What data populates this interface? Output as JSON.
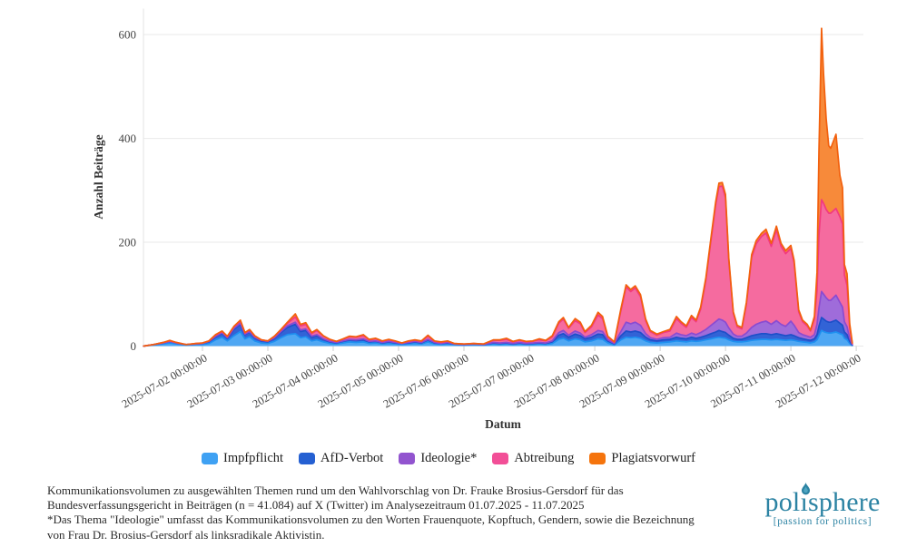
{
  "chart": {
    "y_axis_title": "Anzahl Beiträge",
    "x_axis_title": "Datum",
    "y_ticks": [
      0,
      200,
      400,
      600
    ],
    "x_ticks_t": [
      1,
      2,
      3,
      4,
      5,
      6,
      7,
      8,
      9,
      10,
      11
    ],
    "x_tick_labels": [
      "2025-07-02 00:00:00",
      "2025-07-03 00:00:00",
      "2025-07-04 00:00:00",
      "2025-07-05 00:00:00",
      "2025-07-06 00:00:00",
      "2025-07-07 00:00:00",
      "2025-07-08 00:00:00",
      "2025-07-09 00:00:00",
      "2025-07-10 00:00:00",
      "2025-07-11 00:00:00",
      "2025-07-12 00:00:00"
    ],
    "grid_color": "#e9e9e9",
    "axis_color": "#e3e3e3"
  },
  "chart_data": {
    "type": "area",
    "stacked": true,
    "xlabel": "Datum",
    "ylabel": "Anzahl Beiträge",
    "ylim": [
      0,
      650
    ],
    "grid": "horizontal",
    "legend_position": "bottom-center",
    "x_unit": "days since 2025-07-01 00:00:00",
    "x_range_labels": [
      "2025-07-01",
      "2025-07-12 00:00:00"
    ],
    "x_days": [
      0.1,
      0.25,
      0.4,
      0.5,
      0.6,
      0.75,
      0.9,
      1.0,
      1.1,
      1.2,
      1.3,
      1.38,
      1.48,
      1.58,
      1.65,
      1.72,
      1.8,
      1.9,
      2.0,
      2.1,
      2.2,
      2.3,
      2.42,
      2.5,
      2.58,
      2.67,
      2.75,
      2.85,
      2.95,
      3.05,
      3.15,
      3.25,
      3.35,
      3.46,
      3.55,
      3.65,
      3.75,
      3.85,
      3.95,
      4.05,
      4.15,
      4.25,
      4.35,
      4.45,
      4.55,
      4.65,
      4.75,
      4.85,
      5.0,
      5.15,
      5.3,
      5.45,
      5.55,
      5.65,
      5.75,
      5.85,
      5.95,
      6.05,
      6.15,
      6.25,
      6.35,
      6.45,
      6.52,
      6.6,
      6.7,
      6.78,
      6.85,
      6.95,
      7.05,
      7.12,
      7.2,
      7.3,
      7.4,
      7.48,
      7.55,
      7.62,
      7.7,
      7.78,
      7.85,
      7.95,
      8.05,
      8.15,
      8.25,
      8.32,
      8.4,
      8.48,
      8.55,
      8.62,
      8.7,
      8.78,
      8.85,
      8.9,
      8.95,
      9.0,
      9.05,
      9.12,
      9.18,
      9.25,
      9.32,
      9.4,
      9.47,
      9.55,
      9.62,
      9.7,
      9.78,
      9.85,
      9.92,
      10.0,
      10.05,
      10.12,
      10.18,
      10.25,
      10.3,
      10.36,
      10.4,
      10.43,
      10.47,
      10.5,
      10.54,
      10.58,
      10.61,
      10.69,
      10.75,
      10.79,
      10.82,
      10.86,
      10.9,
      10.94
    ],
    "series": [
      {
        "name": "Impfpflicht",
        "fill": "#4FA7F3",
        "stroke": "#1E90F0",
        "legend_color": "#3FA1F3",
        "values": [
          0,
          2,
          4,
          6,
          4,
          2,
          3,
          3,
          5,
          12,
          17,
          10,
          20,
          28,
          14,
          18,
          10,
          6,
          5,
          9,
          16,
          22,
          24,
          16,
          18,
          10,
          12,
          8,
          5,
          4,
          6,
          8,
          7,
          8,
          5,
          6,
          4,
          5,
          4,
          3,
          4,
          5,
          4,
          8,
          4,
          3,
          4,
          3,
          2,
          3,
          2,
          4,
          3,
          4,
          3,
          4,
          3,
          3,
          4,
          3,
          5,
          13,
          15,
          10,
          14,
          12,
          8,
          10,
          14,
          13,
          6,
          2,
          12,
          17,
          16,
          17,
          15,
          10,
          7,
          6,
          7,
          8,
          10,
          9,
          8,
          10,
          9,
          10,
          12,
          14,
          16,
          17,
          16,
          15,
          12,
          9,
          8,
          8,
          9,
          11,
          12,
          13,
          13,
          12,
          13,
          12,
          11,
          12,
          11,
          9,
          8,
          7,
          6,
          8,
          12,
          20,
          30,
          28,
          26,
          25,
          25,
          27,
          24,
          22,
          15,
          12,
          5,
          1
        ]
      },
      {
        "name": "AfD-Verbot",
        "fill": "#3263D6",
        "stroke": "#1D4FC9",
        "legend_color": "#2560D2",
        "values": [
          0,
          1,
          2,
          3,
          2,
          1,
          1,
          2,
          3,
          6,
          8,
          5,
          12,
          14,
          8,
          9,
          6,
          4,
          3,
          6,
          10,
          14,
          18,
          12,
          12,
          7,
          8,
          5,
          3,
          2,
          3,
          4,
          4,
          4,
          3,
          3,
          2,
          3,
          2,
          2,
          2,
          3,
          2,
          4,
          2,
          2,
          2,
          1,
          1,
          1,
          1,
          2,
          2,
          2,
          1,
          2,
          1,
          2,
          2,
          2,
          3,
          8,
          9,
          7,
          9,
          8,
          6,
          7,
          9,
          9,
          4,
          2,
          8,
          12,
          11,
          12,
          11,
          7,
          5,
          4,
          5,
          5,
          7,
          6,
          6,
          7,
          6,
          7,
          8,
          10,
          11,
          13,
          12,
          11,
          9,
          6,
          5,
          5,
          7,
          9,
          10,
          11,
          11,
          10,
          11,
          10,
          9,
          10,
          9,
          7,
          6,
          5,
          5,
          6,
          10,
          18,
          25,
          24,
          22,
          21,
          21,
          23,
          20,
          18,
          12,
          10,
          4,
          1
        ]
      },
      {
        "name": "Ideologie*",
        "fill": "#9F6CDA",
        "stroke": "#8A4BD1",
        "legend_color": "#9254CF",
        "values": [
          0,
          0,
          0,
          0,
          0,
          0,
          0,
          0,
          1,
          1,
          1,
          1,
          2,
          2,
          1,
          1,
          1,
          1,
          1,
          1,
          2,
          3,
          4,
          3,
          3,
          2,
          2,
          1,
          1,
          1,
          1,
          1,
          1,
          2,
          1,
          1,
          1,
          1,
          1,
          0,
          1,
          1,
          1,
          1,
          1,
          0,
          1,
          0,
          0,
          0,
          0,
          1,
          1,
          1,
          1,
          1,
          1,
          1,
          1,
          1,
          2,
          5,
          6,
          4,
          6,
          5,
          3,
          5,
          7,
          6,
          2,
          1,
          8,
          17,
          16,
          17,
          14,
          7,
          4,
          3,
          4,
          4,
          8,
          7,
          6,
          8,
          7,
          9,
          12,
          16,
          20,
          22,
          22,
          20,
          14,
          8,
          6,
          6,
          9,
          16,
          20,
          22,
          24,
          20,
          25,
          20,
          18,
          26,
          20,
          10,
          8,
          7,
          6,
          8,
          20,
          35,
          50,
          48,
          45,
          42,
          42,
          48,
          40,
          35,
          20,
          15,
          6,
          1
        ]
      },
      {
        "name": "Abtreibung",
        "fill": "#F56B9F",
        "stroke": "#F23A7F",
        "legend_color": "#F24F97",
        "values": [
          0,
          0,
          1,
          1,
          1,
          0,
          1,
          1,
          1,
          2,
          2,
          2,
          3,
          4,
          2,
          3,
          2,
          1,
          1,
          2,
          3,
          5,
          10,
          8,
          9,
          5,
          8,
          5,
          3,
          2,
          3,
          5,
          5,
          6,
          3,
          4,
          2,
          3,
          2,
          1,
          2,
          2,
          2,
          6,
          2,
          2,
          2,
          1,
          1,
          1,
          1,
          4,
          5,
          6,
          3,
          4,
          3,
          3,
          5,
          4,
          8,
          18,
          22,
          13,
          20,
          18,
          9,
          15,
          30,
          25,
          5,
          2,
          40,
          68,
          62,
          66,
          55,
          25,
          12,
          8,
          10,
          12,
          28,
          22,
          16,
          30,
          25,
          45,
          95,
          165,
          225,
          255,
          258,
          240,
          130,
          40,
          18,
          14,
          55,
          135,
          155,
          165,
          170,
          150,
          175,
          150,
          140,
          140,
          120,
          40,
          25,
          20,
          12,
          30,
          65,
          140,
          177,
          175,
          170,
          168,
          168,
          167,
          165,
          160,
          90,
          80,
          20,
          2
        ]
      },
      {
        "name": "Plagiatsvorwurf",
        "fill": "#F78A3A",
        "stroke": "#F2600D",
        "legend_color": "#F5740D",
        "values": [
          0,
          0,
          0,
          1,
          0,
          0,
          0,
          0,
          0,
          1,
          1,
          1,
          1,
          2,
          1,
          1,
          1,
          0,
          0,
          1,
          1,
          2,
          6,
          3,
          3,
          2,
          2,
          1,
          1,
          0,
          1,
          1,
          1,
          2,
          1,
          1,
          1,
          1,
          1,
          0,
          1,
          1,
          1,
          2,
          1,
          1,
          1,
          0,
          0,
          0,
          0,
          1,
          1,
          2,
          1,
          1,
          1,
          1,
          2,
          1,
          2,
          3,
          3,
          2,
          4,
          3,
          2,
          3,
          5,
          4,
          2,
          1,
          4,
          4,
          4,
          4,
          4,
          3,
          2,
          2,
          2,
          3,
          4,
          3,
          3,
          4,
          3,
          4,
          5,
          5,
          6,
          7,
          7,
          6,
          5,
          3,
          3,
          3,
          4,
          5,
          6,
          6,
          7,
          6,
          7,
          6,
          6,
          6,
          5,
          4,
          3,
          3,
          2,
          5,
          35,
          160,
          330,
          250,
          175,
          130,
          125,
          143,
          80,
          70,
          20,
          22,
          8,
          1
        ]
      }
    ]
  },
  "caption": {
    "text": "Kommunikationsvolumen zu ausgewählten Themen rund um den Wahlvorschlag von Dr. Frauke Brosius-Gersdorf für das\nBundesverfassungsgericht in Beiträgen (n = 41.084) auf X (Twitter) im Analysezeitraum 01.07.2025 - 11.07.2025\n*Das Thema \"Ideologie\" umfasst das Kommunikationsvolumen zu den Worten Frauenquote, Kopftuch, Gendern, sowie die Bezeichnung\nvon Frau Dr. Brosius-Gersdorf als linksradikale Aktivistin."
  },
  "logo": {
    "name": "polisphere",
    "part1": "pol",
    "dotless_i": "ı",
    "part2": "sphere",
    "tagline": "[passion for politics]",
    "color": "#2C83A3"
  }
}
